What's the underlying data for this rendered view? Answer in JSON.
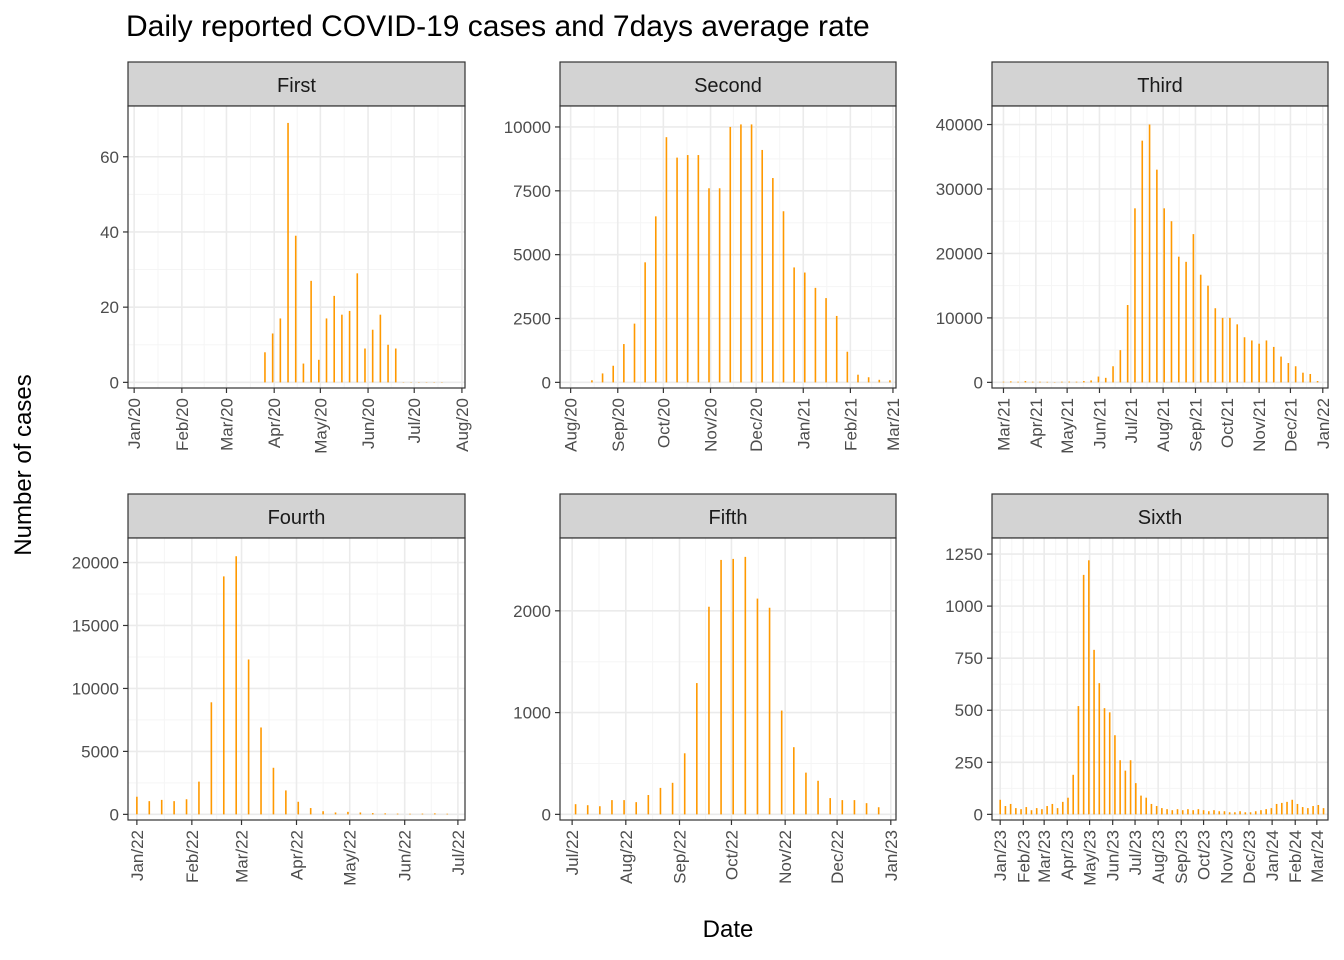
{
  "title": "Daily reported COVID-19 cases and 7days average rate",
  "xlabel": "Date",
  "ylabel": "Number of cases",
  "colors": {
    "bar": "#FF9900",
    "strip": "#D3D3D3",
    "grid_major": "#EBEBEB",
    "grid_minor": "#F5F5F5",
    "axis_text": "#4D4D4D"
  },
  "chart_data": [
    {
      "type": "bar",
      "panel": "First",
      "xlim": [
        "2019-12-28",
        "2020-08-03"
      ],
      "ylim": [
        0,
        72
      ],
      "y_ticks": [
        0,
        20,
        40,
        60
      ],
      "x_ticks": [
        [
          "2020-01-01",
          "Jan/20"
        ],
        [
          "2020-02-01",
          "Feb/20"
        ],
        [
          "2020-03-01",
          "Mar/20"
        ],
        [
          "2020-04-01",
          "Apr/20"
        ],
        [
          "2020-05-01",
          "May/20"
        ],
        [
          "2020-06-01",
          "Jun/20"
        ],
        [
          "2020-07-01",
          "Jul/20"
        ],
        [
          "2020-08-01",
          "Aug/20"
        ]
      ],
      "x": [
        "2020-03-26",
        "2020-03-31",
        "2020-04-05",
        "2020-04-10",
        "2020-04-15",
        "2020-04-20",
        "2020-04-25",
        "2020-04-30",
        "2020-05-05",
        "2020-05-10",
        "2020-05-15",
        "2020-05-20",
        "2020-05-25",
        "2020-05-30",
        "2020-06-04",
        "2020-06-09",
        "2020-06-14",
        "2020-06-19",
        "2020-06-24",
        "2020-06-29",
        "2020-07-04",
        "2020-07-09",
        "2020-07-14",
        "2020-07-19"
      ],
      "values": [
        8,
        13,
        17,
        69,
        39,
        5,
        27,
        6,
        17,
        23,
        18,
        19,
        29,
        9,
        14,
        18,
        10,
        9,
        0,
        0,
        0,
        0,
        0,
        0
      ]
    },
    {
      "type": "bar",
      "panel": "Second",
      "xlim": [
        "2020-07-25",
        "2021-03-03"
      ],
      "ylim": [
        0,
        10600
      ],
      "y_ticks": [
        0,
        2500,
        5000,
        7500,
        10000
      ],
      "x_ticks": [
        [
          "2020-08-01",
          "Aug/20"
        ],
        [
          "2020-09-01",
          "Sep/20"
        ],
        [
          "2020-10-01",
          "Oct/20"
        ],
        [
          "2020-11-01",
          "Nov/20"
        ],
        [
          "2020-12-01",
          "Dec/20"
        ],
        [
          "2021-01-01",
          "Jan/21"
        ],
        [
          "2021-02-01",
          "Feb/21"
        ],
        [
          "2021-03-01",
          "Mar/21"
        ]
      ],
      "x": [
        "2020-08-15",
        "2020-08-22",
        "2020-08-29",
        "2020-09-05",
        "2020-09-12",
        "2020-09-19",
        "2020-09-26",
        "2020-10-03",
        "2020-10-10",
        "2020-10-17",
        "2020-10-24",
        "2020-10-31",
        "2020-11-07",
        "2020-11-14",
        "2020-11-21",
        "2020-11-28",
        "2020-12-05",
        "2020-12-12",
        "2020-12-19",
        "2020-12-26",
        "2021-01-02",
        "2021-01-09",
        "2021-01-16",
        "2021-01-23",
        "2021-01-30",
        "2021-02-06",
        "2021-02-13",
        "2021-02-20",
        "2021-02-27"
      ],
      "values": [
        80,
        350,
        650,
        1500,
        2300,
        4700,
        6500,
        9600,
        8800,
        8900,
        8900,
        7600,
        7600,
        10000,
        10100,
        10100,
        9100,
        8000,
        6700,
        4500,
        4300,
        3700,
        3300,
        2600,
        1200,
        300,
        200,
        100,
        80
      ]
    },
    {
      "type": "bar",
      "panel": "Third",
      "xlim": [
        "2021-02-18",
        "2022-01-06"
      ],
      "ylim": [
        0,
        42000
      ],
      "y_ticks": [
        0,
        10000,
        20000,
        30000,
        40000
      ],
      "x_ticks": [
        [
          "2021-03-01",
          "Mar/21"
        ],
        [
          "2021-04-01",
          "Apr/21"
        ],
        [
          "2021-05-01",
          "May/21"
        ],
        [
          "2021-06-01",
          "Jun/21"
        ],
        [
          "2021-07-01",
          "Jul/21"
        ],
        [
          "2021-08-01",
          "Aug/21"
        ],
        [
          "2021-09-01",
          "Sep/21"
        ],
        [
          "2021-10-01",
          "Oct/21"
        ],
        [
          "2021-11-01",
          "Nov/21"
        ],
        [
          "2021-12-01",
          "Dec/21"
        ],
        [
          "2022-01-01",
          "Jan/22"
        ]
      ],
      "x": [
        "2021-03-01",
        "2021-03-08",
        "2021-03-15",
        "2021-03-22",
        "2021-03-29",
        "2021-04-05",
        "2021-04-12",
        "2021-04-19",
        "2021-04-26",
        "2021-05-03",
        "2021-05-10",
        "2021-05-17",
        "2021-05-24",
        "2021-05-31",
        "2021-06-07",
        "2021-06-14",
        "2021-06-21",
        "2021-06-28",
        "2021-07-05",
        "2021-07-12",
        "2021-07-19",
        "2021-07-26",
        "2021-08-02",
        "2021-08-09",
        "2021-08-16",
        "2021-08-23",
        "2021-08-30",
        "2021-09-06",
        "2021-09-13",
        "2021-09-20",
        "2021-09-27",
        "2021-10-04",
        "2021-10-11",
        "2021-10-18",
        "2021-10-25",
        "2021-11-01",
        "2021-11-08",
        "2021-11-15",
        "2021-11-22",
        "2021-11-29",
        "2021-12-06",
        "2021-12-13",
        "2021-12-20",
        "2021-12-27"
      ],
      "values": [
        100,
        150,
        100,
        200,
        100,
        100,
        80,
        50,
        100,
        120,
        100,
        200,
        300,
        900,
        700,
        2500,
        5000,
        12000,
        27000,
        37500,
        40000,
        33000,
        27000,
        25000,
        19500,
        18700,
        23000,
        16700,
        15000,
        11500,
        10000,
        10000,
        9000,
        7000,
        6500,
        6000,
        6500,
        5500,
        4000,
        3000,
        2500,
        1500,
        1300,
        200
      ]
    },
    {
      "type": "bar",
      "panel": "Fourth",
      "xlim": [
        "2021-12-27",
        "2022-07-05"
      ],
      "ylim": [
        0,
        21500
      ],
      "y_ticks": [
        0,
        5000,
        10000,
        15000,
        20000
      ],
      "x_ticks": [
        [
          "2022-01-01",
          "Jan/22"
        ],
        [
          "2022-02-01",
          "Feb/22"
        ],
        [
          "2022-03-01",
          "Mar/22"
        ],
        [
          "2022-04-01",
          "Apr/22"
        ],
        [
          "2022-05-01",
          "May/22"
        ],
        [
          "2022-06-01",
          "Jun/22"
        ],
        [
          "2022-07-01",
          "Jul/22"
        ]
      ],
      "x": [
        "2022-01-01",
        "2022-01-08",
        "2022-01-15",
        "2022-01-22",
        "2022-01-29",
        "2022-02-05",
        "2022-02-12",
        "2022-02-19",
        "2022-02-26",
        "2022-03-05",
        "2022-03-12",
        "2022-03-19",
        "2022-03-26",
        "2022-04-02",
        "2022-04-09",
        "2022-04-16",
        "2022-04-23",
        "2022-04-30",
        "2022-05-07",
        "2022-05-14",
        "2022-05-21",
        "2022-05-28",
        "2022-06-04",
        "2022-06-11",
        "2022-06-18",
        "2022-06-25"
      ],
      "values": [
        1400,
        1050,
        1150,
        1050,
        1200,
        2600,
        8900,
        18900,
        20500,
        12300,
        6900,
        3700,
        1900,
        1000,
        500,
        250,
        150,
        200,
        150,
        100,
        80,
        60,
        50,
        60,
        80,
        50
      ]
    },
    {
      "type": "bar",
      "panel": "Fifth",
      "xlim": [
        "2022-06-24",
        "2023-01-04"
      ],
      "ylim": [
        0,
        2660
      ],
      "y_ticks": [
        0,
        1000,
        2000
      ],
      "x_ticks": [
        [
          "2022-07-01",
          "Jul/22"
        ],
        [
          "2022-08-01",
          "Aug/22"
        ],
        [
          "2022-09-01",
          "Sep/22"
        ],
        [
          "2022-10-01",
          "Oct/22"
        ],
        [
          "2022-11-01",
          "Nov/22"
        ],
        [
          "2022-12-01",
          "Dec/22"
        ],
        [
          "2023-01-01",
          "Jan/23"
        ]
      ],
      "x": [
        "2022-07-03",
        "2022-07-10",
        "2022-07-17",
        "2022-07-24",
        "2022-07-31",
        "2022-08-07",
        "2022-08-14",
        "2022-08-21",
        "2022-08-28",
        "2022-09-04",
        "2022-09-11",
        "2022-09-18",
        "2022-09-25",
        "2022-10-02",
        "2022-10-09",
        "2022-10-16",
        "2022-10-23",
        "2022-10-30",
        "2022-11-06",
        "2022-11-13",
        "2022-11-20",
        "2022-11-27",
        "2022-12-04",
        "2022-12-11",
        "2022-12-18",
        "2022-12-25"
      ],
      "values": [
        100,
        90,
        80,
        140,
        140,
        120,
        190,
        260,
        310,
        600,
        1290,
        2040,
        2500,
        2510,
        2530,
        2120,
        2030,
        1020,
        660,
        410,
        330,
        160,
        140,
        140,
        110,
        70
      ]
    },
    {
      "type": "bar",
      "panel": "Sixth",
      "xlim": [
        "2022-12-21",
        "2024-03-16"
      ],
      "ylim": [
        0,
        1300
      ],
      "y_ticks": [
        0,
        250,
        500,
        750,
        1000,
        1250
      ],
      "x_ticks": [
        [
          "2023-01-01",
          "Jan/23"
        ],
        [
          "2023-02-01",
          "Feb/23"
        ],
        [
          "2023-03-01",
          "Mar/23"
        ],
        [
          "2023-04-01",
          "Apr/23"
        ],
        [
          "2023-05-01",
          "May/23"
        ],
        [
          "2023-06-01",
          "Jun/23"
        ],
        [
          "2023-07-01",
          "Jul/23"
        ],
        [
          "2023-08-01",
          "Aug/23"
        ],
        [
          "2023-09-01",
          "Sep/23"
        ],
        [
          "2023-10-01",
          "Oct/23"
        ],
        [
          "2023-11-01",
          "Nov/23"
        ],
        [
          "2023-12-01",
          "Dec/23"
        ],
        [
          "2024-01-01",
          "Jan/24"
        ],
        [
          "2024-02-01",
          "Feb/24"
        ],
        [
          "2024-03-01",
          "Mar/24"
        ]
      ],
      "x": [
        "2023-01-01",
        "2023-01-08",
        "2023-01-15",
        "2023-01-22",
        "2023-01-29",
        "2023-02-05",
        "2023-02-12",
        "2023-02-19",
        "2023-02-26",
        "2023-03-05",
        "2023-03-12",
        "2023-03-19",
        "2023-03-26",
        "2023-04-02",
        "2023-04-09",
        "2023-04-16",
        "2023-04-23",
        "2023-04-30",
        "2023-05-07",
        "2023-05-14",
        "2023-05-21",
        "2023-05-28",
        "2023-06-04",
        "2023-06-11",
        "2023-06-18",
        "2023-06-25",
        "2023-07-02",
        "2023-07-09",
        "2023-07-16",
        "2023-07-23",
        "2023-07-30",
        "2023-08-06",
        "2023-08-13",
        "2023-08-20",
        "2023-08-27",
        "2023-09-03",
        "2023-09-10",
        "2023-09-17",
        "2023-09-24",
        "2023-10-01",
        "2023-10-08",
        "2023-10-15",
        "2023-10-22",
        "2023-10-29",
        "2023-11-05",
        "2023-11-12",
        "2023-11-19",
        "2023-11-26",
        "2023-12-03",
        "2023-12-10",
        "2023-12-17",
        "2023-12-24",
        "2023-12-31",
        "2024-01-07",
        "2024-01-14",
        "2024-01-21",
        "2024-01-28",
        "2024-02-04",
        "2024-02-11",
        "2024-02-18",
        "2024-02-25",
        "2024-03-03",
        "2024-03-10"
      ],
      "values": [
        70,
        40,
        50,
        30,
        25,
        35,
        20,
        30,
        25,
        40,
        50,
        30,
        60,
        80,
        190,
        520,
        1150,
        1220,
        790,
        630,
        510,
        490,
        380,
        260,
        210,
        260,
        150,
        90,
        80,
        50,
        40,
        30,
        25,
        20,
        25,
        20,
        25,
        20,
        25,
        20,
        15,
        20,
        15,
        15,
        10,
        10,
        15,
        10,
        10,
        15,
        20,
        25,
        30,
        50,
        55,
        60,
        70,
        50,
        35,
        30,
        40,
        45,
        30
      ]
    }
  ]
}
